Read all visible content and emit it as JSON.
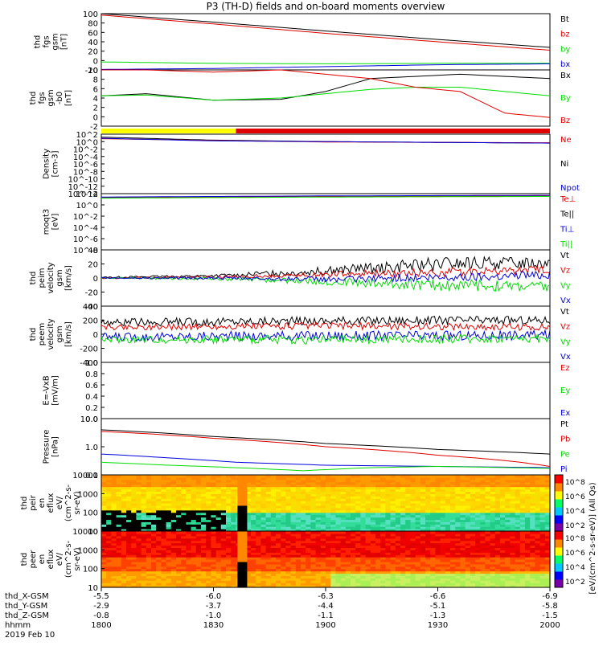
{
  "title": "P3 (TH-D) fields and on-board moments overview",
  "colors": {
    "black": "#000000",
    "red": "#e00000",
    "green": "#00dd00",
    "blue": "#0000dd",
    "yellow": "#ffff00"
  },
  "chart_data": {
    "type": "line",
    "x_time": {
      "ticks": [
        "1800",
        "1830",
        "1900",
        "1930",
        "2000"
      ],
      "ephem_labels": [
        "thd_X-GSM",
        "thd_Y-GSM",
        "thd_Z-GSM",
        "hhmm"
      ],
      "date_label": "2019 Feb 10",
      "X_GSM": [
        "-5.5",
        "-6.0",
        "-6.3",
        "-6.6",
        "-6.9"
      ],
      "Y_GSM": [
        "-2.9",
        "-3.7",
        "-4.4",
        "-5.1",
        "-5.8"
      ],
      "Z_GSM": [
        "-0.8",
        "-1.0",
        "-1.1",
        "-1.3",
        "-1.5"
      ]
    },
    "panels": [
      {
        "ylabel": [
          "thd",
          "fgs",
          "gsm",
          "[nT]"
        ],
        "ylim": [
          -20,
          100
        ],
        "log": false,
        "ticks": [
          "100",
          "80",
          "60",
          "40",
          "20",
          "0",
          "-20"
        ],
        "legend": [
          {
            "t": "Bt",
            "c": "black"
          },
          {
            "t": "bz",
            "c": "red"
          },
          {
            "t": "by",
            "c": "green"
          },
          {
            "t": "bx",
            "c": "blue"
          }
        ],
        "series": [
          {
            "name": "Bt",
            "color": "black",
            "x": [
              0,
              0.5,
              1,
              1.5,
              2
            ],
            "y": [
              100,
              82,
              63,
              45,
              28
            ]
          },
          {
            "name": "bz",
            "color": "red",
            "x": [
              0,
              0.5,
              1,
              1.5,
              2
            ],
            "y": [
              97,
              78,
              58,
              40,
              22
            ]
          },
          {
            "name": "by",
            "color": "green",
            "x": [
              0,
              0.5,
              1,
              1.5,
              2
            ],
            "y": [
              -3,
              -6,
              -7,
              -6,
              -6
            ]
          },
          {
            "name": "bx",
            "color": "blue",
            "x": [
              0,
              0.5,
              1,
              1.5,
              2
            ],
            "y": [
              -19,
              -17,
              -13,
              -9,
              -7
            ]
          }
        ]
      },
      {
        "ylabel": [
          "thd",
          "fgs",
          "gsm",
          "-b0",
          "[nT]"
        ],
        "ylim": [
          -3,
          10
        ],
        "log": false,
        "ticks": [
          "10",
          "8",
          "6",
          "4",
          "2",
          "0",
          "-2"
        ],
        "legend": [
          {
            "t": "Bx",
            "c": "black"
          },
          {
            "t": "By",
            "c": "green"
          },
          {
            "t": "Bz",
            "c": "red"
          }
        ],
        "series": [
          {
            "name": "Bx",
            "color": "black",
            "x": [
              0,
              0.2,
              0.5,
              0.8,
              1,
              1.2,
              1.4,
              1.6,
              1.8,
              2
            ],
            "y": [
              4,
              4.5,
              3,
              3.2,
              5,
              8,
              8.5,
              9,
              8.5,
              8
            ]
          },
          {
            "name": "By",
            "color": "green",
            "x": [
              0,
              0.2,
              0.5,
              0.8,
              1,
              1.2,
              1.4,
              1.6,
              1.8,
              2
            ],
            "y": [
              4,
              4.2,
              3,
              3.5,
              4.5,
              5.5,
              6,
              6,
              5,
              4
            ]
          },
          {
            "name": "Bz",
            "color": "red",
            "x": [
              0,
              0.2,
              0.5,
              0.8,
              1,
              1.2,
              1.4,
              1.6,
              1.8,
              2
            ],
            "y": [
              10,
              10,
              9.5,
              10,
              9,
              8,
              6,
              5,
              0,
              -1
            ]
          }
        ]
      },
      {
        "ylabel": [
          "Density",
          "[cm-3]"
        ],
        "ylim": [
          -14,
          2
        ],
        "log": true,
        "ticks": [
          "10^2",
          "10^0",
          "10^-2",
          "10^-4",
          "10^-6",
          "10^-8",
          "10^-10",
          "10^-12",
          "10^-14"
        ],
        "legend": [
          {
            "t": "Ne",
            "c": "red"
          },
          {
            "t": "Ni",
            "c": "black"
          },
          {
            "t": "Npot",
            "c": "blue"
          }
        ],
        "series": [
          {
            "name": "Ni",
            "color": "black",
            "x": [
              0,
              0.5,
              1,
              1.5,
              2
            ],
            "y": [
              1.2,
              0.4,
              0,
              -0.2,
              -0.4
            ]
          },
          {
            "name": "Ne",
            "color": "red",
            "x": [
              0,
              0.5,
              1,
              1.5,
              2
            ],
            "y": [
              0.8,
              0.3,
              -0.1,
              -0.2,
              -0.3
            ]
          },
          {
            "name": "Npot",
            "color": "blue",
            "x": [
              0,
              0.5,
              1,
              1.5,
              2
            ],
            "y": [
              0.9,
              0.2,
              0,
              -0.2,
              -0.4
            ]
          }
        ]
      },
      {
        "ylabel": [
          "moqt3",
          "[eV]"
        ],
        "ylim": [
          -8,
          2
        ],
        "log": true,
        "ticks": [
          "10^2",
          "10^0",
          "10^-2",
          "10^-4",
          "10^-6",
          "10^-8"
        ],
        "legend": [
          {
            "t": "Te⊥",
            "c": "red"
          },
          {
            "t": "Te||",
            "c": "black"
          },
          {
            "t": "Ti⊥",
            "c": "blue"
          },
          {
            "t": "Ti||",
            "c": "green"
          }
        ],
        "series": [
          {
            "name": "Te⊥",
            "color": "red",
            "x": [
              0,
              1,
              2
            ],
            "y": [
              1.3,
              1.5,
              1.6
            ]
          },
          {
            "name": "Ti||",
            "color": "green",
            "x": [
              0,
              1,
              2
            ],
            "y": [
              1.2,
              1.4,
              1.5
            ]
          },
          {
            "name": "Ti⊥",
            "color": "blue",
            "x": [
              0,
              1,
              2
            ],
            "y": [
              1.4,
              1.6,
              1.7
            ]
          }
        ]
      },
      {
        "ylabel": [
          "thd",
          "peim",
          "velocity",
          "gsm",
          "[km/s]"
        ],
        "ylim": [
          -40,
          40
        ],
        "log": false,
        "ticks": [
          "40",
          "20",
          "0",
          "-20",
          "-40"
        ],
        "legend": [
          {
            "t": "Vt",
            "c": "black"
          },
          {
            "t": "Vz",
            "c": "red"
          },
          {
            "t": "Vy",
            "c": "green"
          },
          {
            "t": "Vx",
            "c": "blue"
          }
        ],
        "series": [
          {
            "name": "Vt",
            "color": "black",
            "x": [
              0,
              0.5,
              1,
              1.5,
              2
            ],
            "y": [
              1,
              3,
              10,
              20,
              22
            ],
            "noise": [
              1,
              2,
              6,
              10,
              8
            ]
          },
          {
            "name": "Vz",
            "color": "red",
            "x": [
              0,
              0.5,
              1,
              1.5,
              2
            ],
            "y": [
              0,
              1,
              5,
              8,
              12
            ],
            "noise": [
              1,
              2,
              4,
              6,
              6
            ]
          },
          {
            "name": "Vy",
            "color": "green",
            "x": [
              0,
              0.5,
              1,
              1.5,
              2
            ],
            "y": [
              0,
              -1,
              -5,
              -10,
              -12
            ],
            "noise": [
              1,
              2,
              5,
              8,
              8
            ]
          },
          {
            "name": "Vx",
            "color": "blue",
            "x": [
              0,
              0.5,
              1,
              1.5,
              2
            ],
            "y": [
              0,
              0,
              -2,
              0,
              5
            ],
            "noise": [
              1,
              2,
              4,
              6,
              6
            ]
          }
        ]
      },
      {
        "ylabel": [
          "thd",
          "peem",
          "velocity",
          "gsm",
          "[km/s]"
        ],
        "ylim": [
          -400,
          400
        ],
        "log": false,
        "ticks": [
          "400",
          "200",
          "0",
          "-200",
          "-400"
        ],
        "legend": [
          {
            "t": "Vt",
            "c": "black"
          },
          {
            "t": "Vz",
            "c": "red"
          },
          {
            "t": "Vy",
            "c": "green"
          },
          {
            "t": "Vx",
            "c": "blue"
          }
        ],
        "series": [
          {
            "name": "Vt",
            "color": "black",
            "x": [
              0,
              0.5,
              1,
              1.5,
              2
            ],
            "y": [
              170,
              180,
              190,
              200,
              200
            ],
            "noise": [
              50,
              60,
              60,
              60,
              60
            ]
          },
          {
            "name": "Vz",
            "color": "red",
            "x": [
              0,
              0.5,
              1,
              1.5,
              2
            ],
            "y": [
              100,
              110,
              120,
              110,
              100
            ],
            "noise": [
              40,
              50,
              50,
              50,
              50
            ]
          },
          {
            "name": "Vx",
            "color": "blue",
            "x": [
              0,
              0.5,
              1,
              1.5,
              2
            ],
            "y": [
              -40,
              -30,
              -20,
              -20,
              -10
            ],
            "noise": [
              60,
              70,
              70,
              70,
              70
            ]
          },
          {
            "name": "Vy",
            "color": "green",
            "x": [
              0,
              0.5,
              1,
              1.5,
              2
            ],
            "y": [
              -80,
              -70,
              -80,
              -70,
              -60
            ],
            "noise": [
              50,
              60,
              60,
              60,
              60
            ]
          }
        ]
      },
      {
        "ylabel": [
          "E=-VxB",
          "[mV/m]"
        ],
        "ylim": [
          0,
          1
        ],
        "log": false,
        "ticks": [
          "1.0",
          "0.8",
          "0.6",
          "0.4",
          "0.2",
          "0.0"
        ],
        "legend": [
          {
            "t": "Ez",
            "c": "red"
          },
          {
            "t": "Ey",
            "c": "green"
          },
          {
            "t": "Ex",
            "c": "blue"
          }
        ],
        "series": []
      },
      {
        "ylabel": [
          "Pressure",
          "[nPa]"
        ],
        "ylim": [
          -1,
          1
        ],
        "log": true,
        "ticks": [
          "10.0",
          "1.0",
          "0.1"
        ],
        "legend": [
          {
            "t": "Pt",
            "c": "black"
          },
          {
            "t": "Pb",
            "c": "red"
          },
          {
            "t": "Pe",
            "c": "green"
          },
          {
            "t": "Pi",
            "c": "blue"
          }
        ],
        "series": [
          {
            "name": "Pt",
            "color": "black",
            "x": [
              0,
              0.5,
              1,
              1.5,
              2
            ],
            "y": [
              4,
              2.3,
              1.3,
              0.8,
              0.55
            ]
          },
          {
            "name": "Pb",
            "color": "red",
            "x": [
              0,
              0.5,
              1,
              1.5,
              2
            ],
            "y": [
              3.5,
              2,
              1,
              0.5,
              0.2
            ]
          },
          {
            "name": "Pi",
            "color": "blue",
            "x": [
              0,
              0.3,
              0.6,
              1,
              1.5,
              2
            ],
            "y": [
              0.55,
              0.4,
              0.28,
              0.22,
              0.2,
              0.18
            ]
          },
          {
            "name": "Pe",
            "color": "green",
            "x": [
              0,
              0.3,
              0.6,
              0.9,
              1.2,
              1.5,
              2
            ],
            "y": [
              0.28,
              0.22,
              0.18,
              0.14,
              0.18,
              0.2,
              0.17
            ]
          }
        ]
      },
      {
        "ylabel": [
          "thd",
          "peir",
          "en",
          "eflux",
          "eV/",
          "(cm^2-s-",
          "sr-eV)"
        ],
        "ylim": [
          1,
          4
        ],
        "log": true,
        "spectrogram": true,
        "ticks": [
          "10000",
          "1000",
          "100",
          "10"
        ],
        "colorbar_ticks": [
          "10^8",
          "10^6",
          "10^4",
          "10^2"
        ]
      },
      {
        "ylabel": [
          "thd",
          "peer",
          "en",
          "eflux",
          "eV/",
          "(cm^2-s-",
          "sr-eV)"
        ],
        "ylim": [
          1,
          4
        ],
        "log": true,
        "spectrogram": true,
        "ticks": [
          "10000",
          "1000",
          "100",
          "10"
        ],
        "colorbar_ticks": [
          "10^8",
          "10^6",
          "10^4",
          "10^2"
        ]
      }
    ],
    "colorbar_label": "[eV/(cm^2-s-sr-eV)] (All Qs)"
  }
}
